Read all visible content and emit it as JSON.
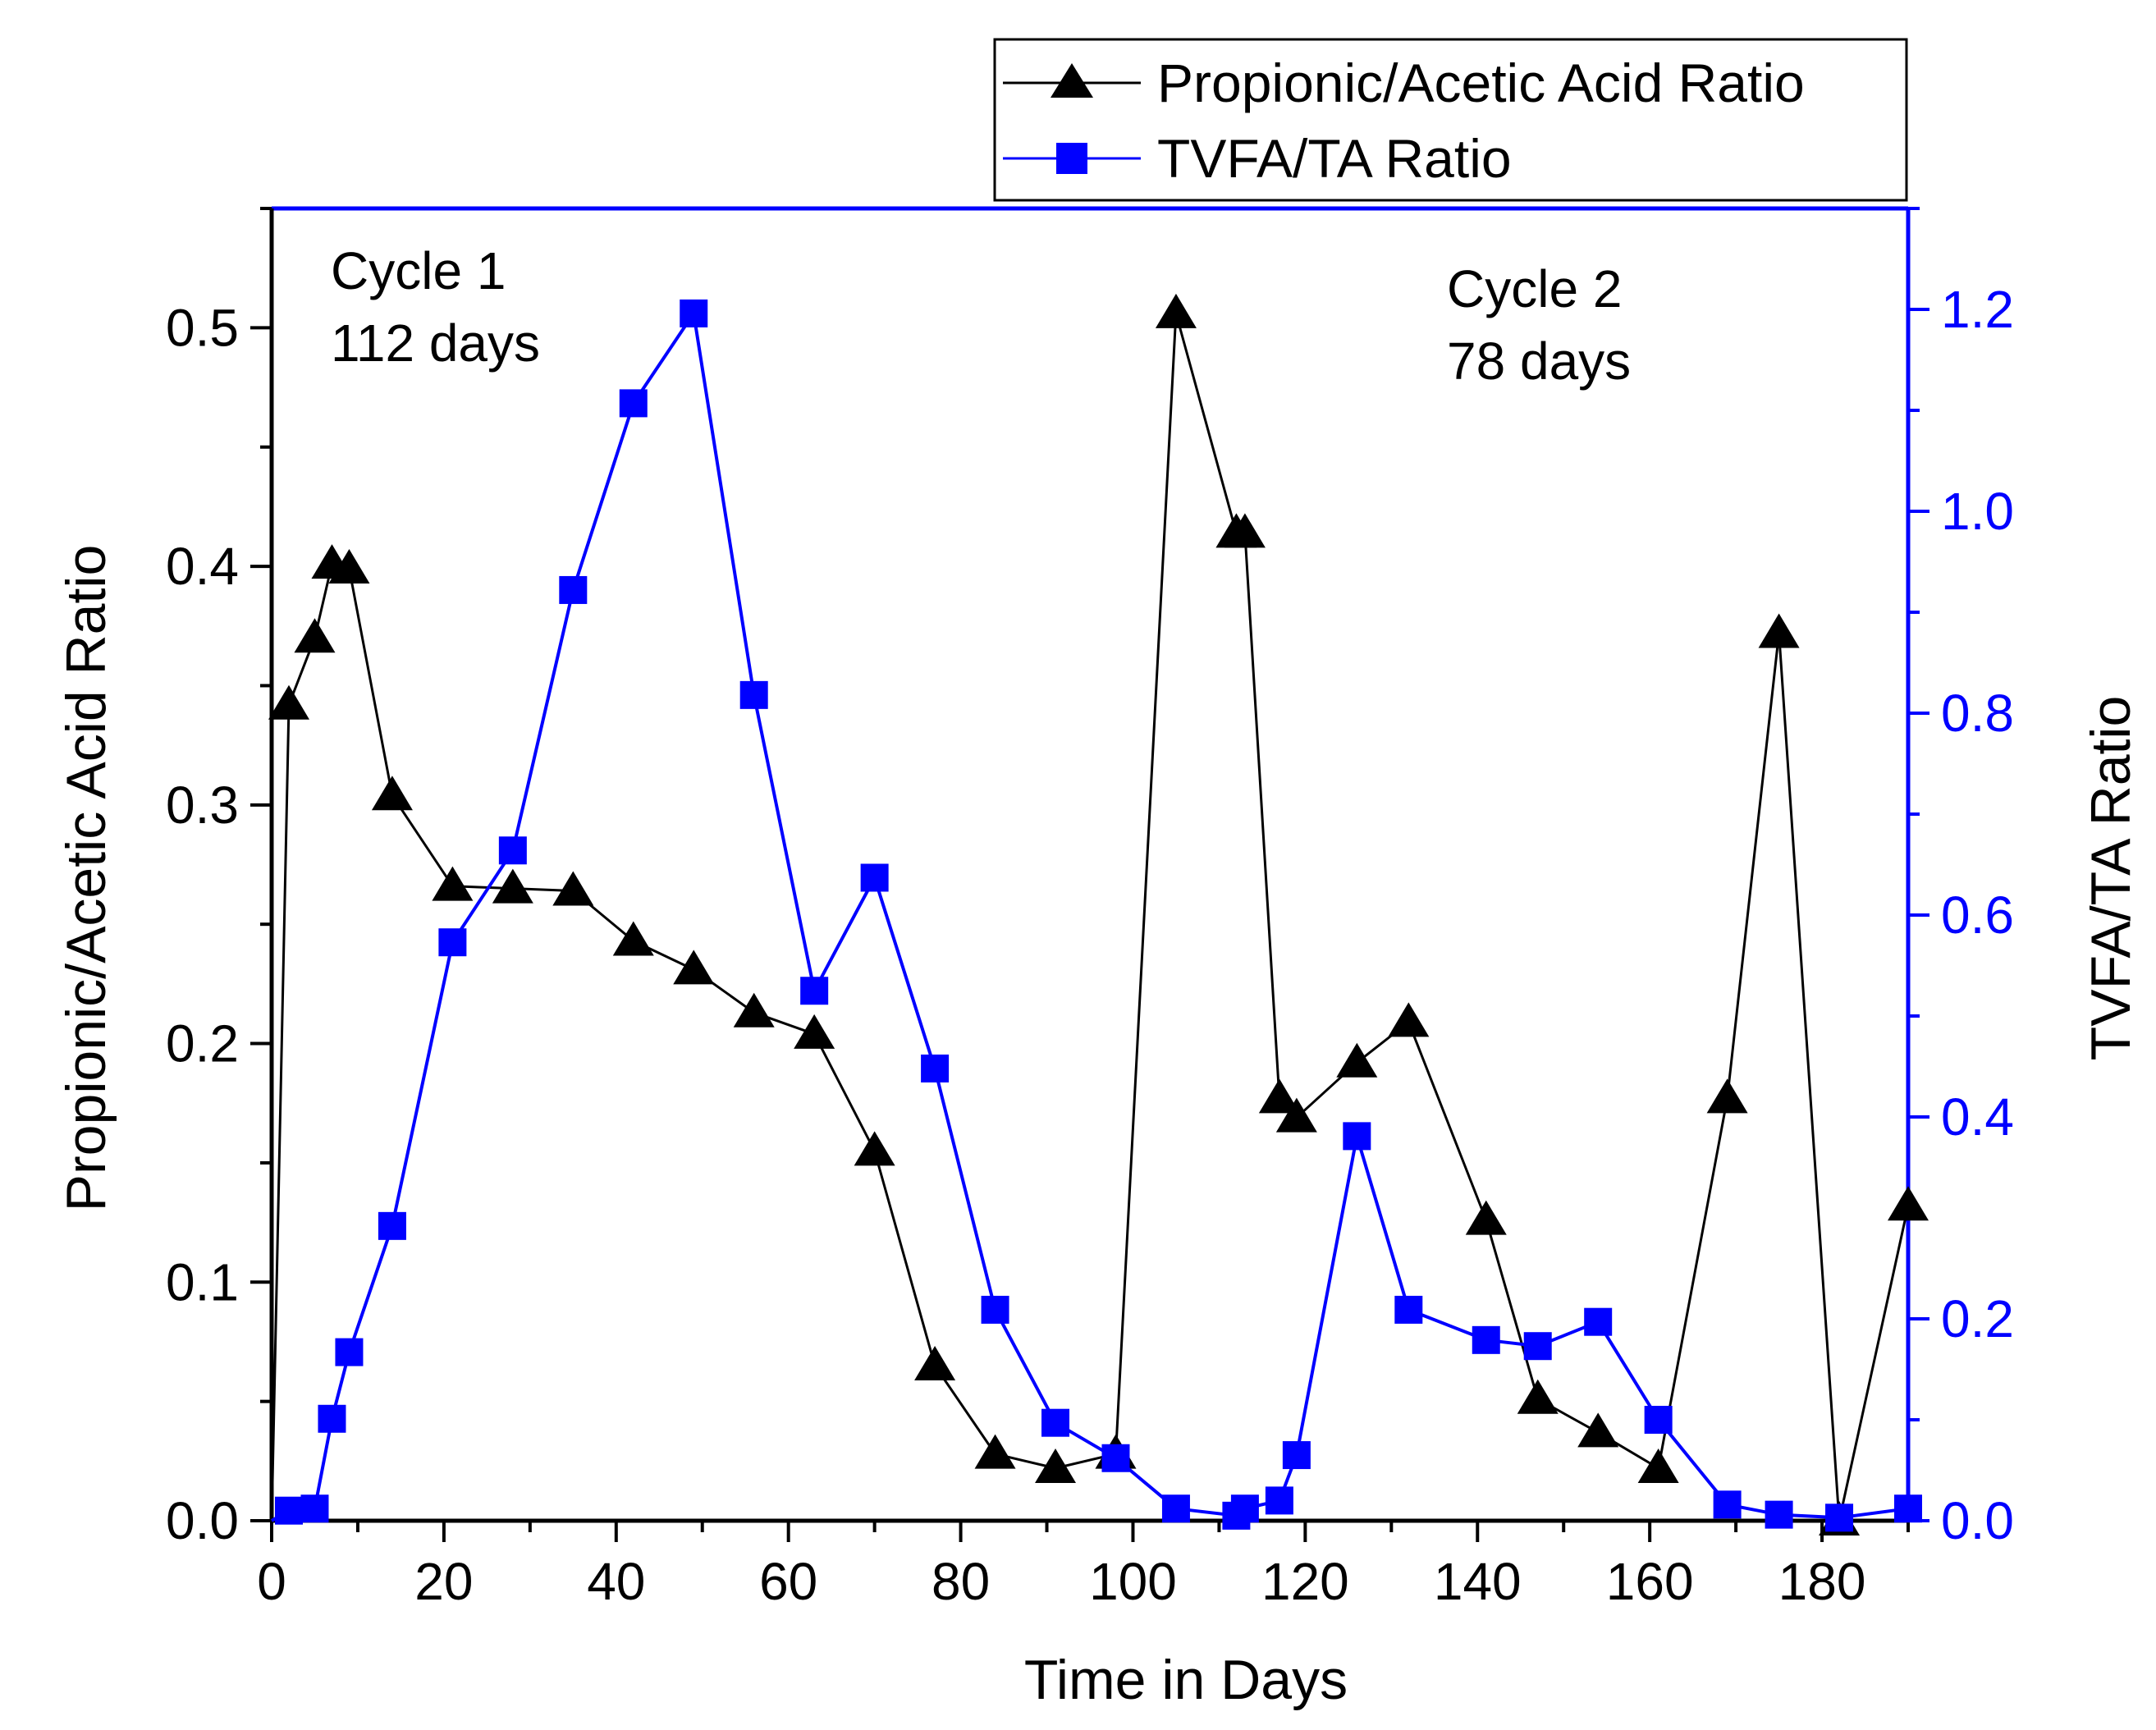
{
  "chart_data": {
    "type": "line",
    "title": "",
    "xlabel": "Time in Days",
    "ylabel_left": "Propionic/Acetic Acid Ratio",
    "ylabel_right": "TVFA/TA Ratio",
    "xlim": [
      0,
      190
    ],
    "ylim_left": [
      0,
      0.55
    ],
    "ylim_right": [
      0,
      1.3
    ],
    "x_ticks": [
      0,
      20,
      40,
      60,
      80,
      100,
      120,
      140,
      160,
      180
    ],
    "y_left_ticks": [
      0.0,
      0.1,
      0.2,
      0.3,
      0.4,
      0.5
    ],
    "y_right_ticks": [
      0.0,
      0.2,
      0.4,
      0.6,
      0.8,
      1.0,
      1.2
    ],
    "grid": false,
    "legend_position": "top-right",
    "annotations": [
      {
        "line1": "Cycle 1",
        "line2": "112 days",
        "x": 7,
        "y": 0.525
      },
      {
        "line1": "Cycle 2",
        "line2": "78 days",
        "x": 135,
        "y": 0.515
      }
    ],
    "series": [
      {
        "name": "Propionic/Acetic Acid Ratio",
        "axis": "left",
        "marker": "triangle",
        "color": "#000000",
        "x": [
          0,
          2,
          5,
          7,
          9,
          14,
          21,
          28,
          35,
          42,
          49,
          56,
          63,
          70,
          77,
          84,
          91,
          98,
          105,
          112,
          113,
          117,
          119,
          126,
          132,
          141,
          147,
          154,
          161,
          169,
          175,
          182,
          190
        ],
        "y": [
          0.0,
          0.342,
          0.37,
          0.401,
          0.399,
          0.304,
          0.266,
          0.265,
          0.264,
          0.243,
          0.231,
          0.213,
          0.204,
          0.155,
          0.065,
          0.028,
          0.022,
          0.028,
          0.506,
          0.414,
          0.414,
          0.177,
          0.169,
          0.192,
          0.209,
          0.126,
          0.051,
          0.037,
          0.022,
          0.177,
          0.372,
          0.0,
          0.132
        ]
      },
      {
        "name": "TVFA/TA Ratio",
        "axis": "right",
        "marker": "square",
        "color": "#0000ff",
        "x": [
          0,
          2,
          5,
          7,
          9,
          14,
          21,
          28,
          35,
          42,
          49,
          56,
          63,
          70,
          77,
          84,
          91,
          98,
          105,
          112,
          113,
          117,
          119,
          126,
          132,
          141,
          147,
          154,
          161,
          169,
          175,
          182,
          190
        ],
        "y": [
          0.0,
          0.01,
          0.012,
          0.101,
          0.167,
          0.292,
          0.573,
          0.664,
          0.922,
          1.107,
          1.196,
          0.818,
          0.525,
          0.637,
          0.448,
          0.209,
          0.097,
          0.062,
          0.012,
          0.005,
          0.012,
          0.02,
          0.065,
          0.381,
          0.209,
          0.179,
          0.173,
          0.197,
          0.1,
          0.016,
          0.006,
          0.003,
          0.012
        ]
      }
    ]
  }
}
